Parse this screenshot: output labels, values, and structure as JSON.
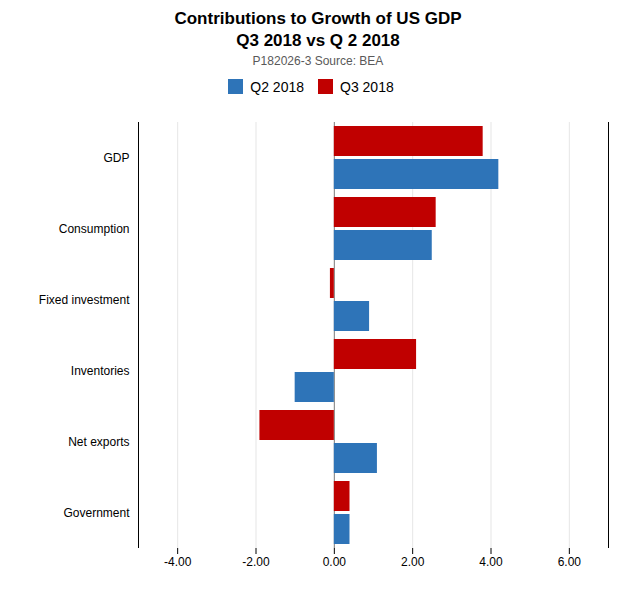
{
  "chart_data": {
    "type": "bar",
    "orientation": "horizontal",
    "title": [
      "Contributions to Growth of US GDP",
      "Q3 2018 vs Q 2 2018"
    ],
    "subtitle": "P182026-3 Source: BEA",
    "categories": [
      "GDP",
      "Consumption",
      "Fixed investment",
      "Inventories",
      "Net exports",
      "Government"
    ],
    "series": [
      {
        "name": "Q2 2018",
        "color": "#2e74b8",
        "values": [
          4.2,
          2.5,
          0.9,
          -1.0,
          1.1,
          0.4
        ]
      },
      {
        "name": "Q3 2018",
        "color": "#c00000",
        "values": [
          3.8,
          2.6,
          -0.1,
          2.1,
          -1.9,
          0.4
        ]
      }
    ],
    "xlim": [
      -5.0,
      7.0
    ],
    "xticks": [
      {
        "value": -4.0,
        "label": "-4.00"
      },
      {
        "value": -2.0,
        "label": "-2.00"
      },
      {
        "value": 0.0,
        "label": "0.00"
      },
      {
        "value": 2.0,
        "label": "2.00"
      },
      {
        "value": 4.0,
        "label": "4.00"
      },
      {
        "value": 6.0,
        "label": "6.00"
      }
    ],
    "grid": true,
    "legend": "top"
  }
}
